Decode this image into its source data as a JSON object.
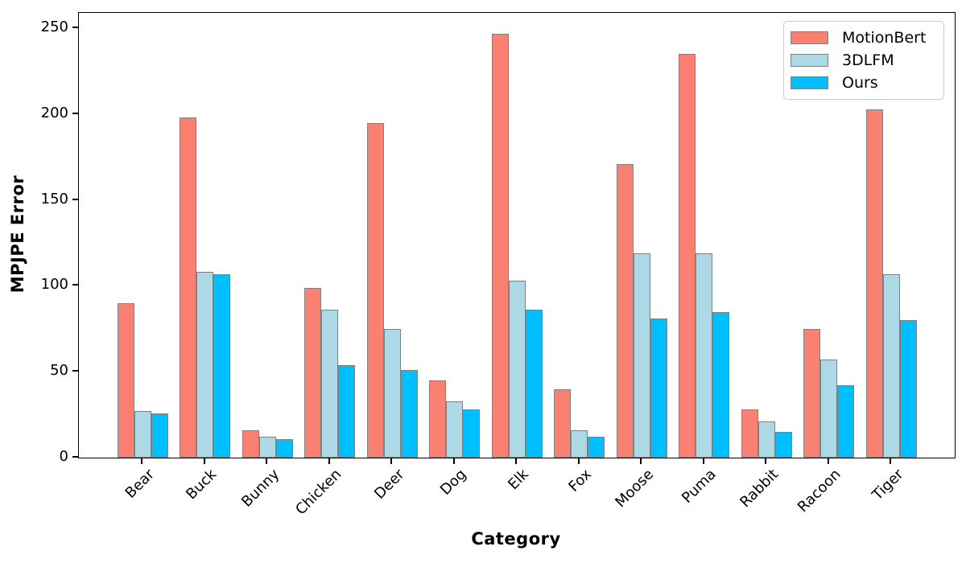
{
  "chart_data": {
    "type": "bar",
    "title": "",
    "xlabel": "Category",
    "ylabel": "MPJPE Error",
    "categories": [
      "Bear",
      "Buck",
      "Bunny",
      "Chicken",
      "Deer",
      "Dog",
      "Elk",
      "Fox",
      "Moose",
      "Puma",
      "Rabbit",
      "Racoon",
      "Tiger"
    ],
    "series": [
      {
        "name": "MotionBert",
        "color": "#FA8072",
        "values": [
          90,
          198,
          16,
          99,
          195,
          45,
          247,
          40,
          171,
          235,
          28,
          75,
          203
        ]
      },
      {
        "name": "3DLFM",
        "color": "#ADD8E6",
        "values": [
          27,
          108,
          12,
          86,
          75,
          33,
          103,
          16,
          119,
          119,
          21,
          57,
          107
        ]
      },
      {
        "name": "Ours",
        "color": "#00BFFF",
        "values": [
          26,
          107,
          11,
          54,
          51,
          28,
          86,
          12,
          81,
          85,
          15,
          42,
          80
        ]
      }
    ],
    "ylim": [
      0,
      259
    ],
    "yticks": [
      0,
      50,
      100,
      150,
      200,
      250
    ],
    "bar_edge_color": "#808080",
    "axis_color": "#000000",
    "grid": false,
    "legend": {
      "position": "upper right",
      "entries": [
        "MotionBert",
        "3DLFM",
        "Ours"
      ]
    }
  }
}
